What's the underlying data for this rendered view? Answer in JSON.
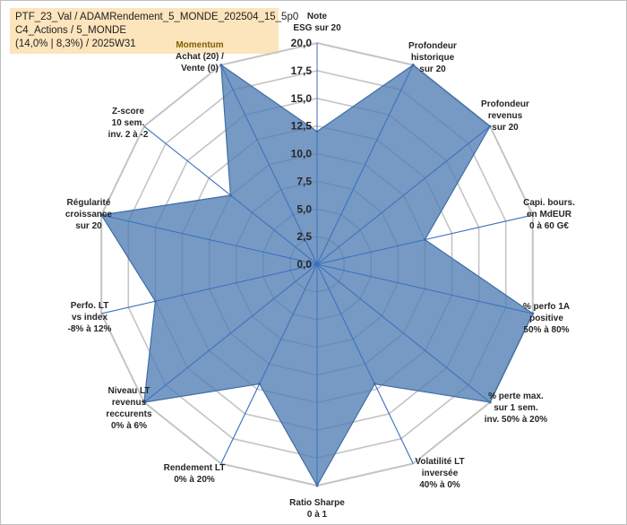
{
  "title_lines": [
    "PTF_23_Val / ADAMRendement_5_MONDE_202504_15_5p0",
    "C4_Actions / 5_MONDE",
    "(14,0% | 8,3%) / 2025W31"
  ],
  "chart_data": {
    "type": "radar",
    "range": [
      0,
      20
    ],
    "ticks": [
      "0,0",
      "2,5",
      "5,0",
      "7,5",
      "10,0",
      "12,5",
      "15,0",
      "17,5",
      "20,0"
    ],
    "grid": true,
    "axes": [
      {
        "lines": [
          "Note",
          "ESG sur 20"
        ],
        "value": 12
      },
      {
        "lines": [
          "Profondeur",
          "historique",
          "sur 20"
        ],
        "value": 20
      },
      {
        "lines": [
          "Profondeur",
          "revenus",
          "sur 20"
        ],
        "value": 20
      },
      {
        "lines": [
          "Capi. bours.",
          "en MdEUR",
          "0 à 60 G€"
        ],
        "value": 10
      },
      {
        "lines": [
          "% perfo 1A",
          "positive",
          "50% à 80%"
        ],
        "value": 20
      },
      {
        "lines": [
          "% perte max.",
          "sur 1 sem.",
          "inv. 50% à 20%"
        ],
        "value": 20
      },
      {
        "lines": [
          "Volatilité LT",
          "inversée",
          "40% à 0%"
        ],
        "value": 12
      },
      {
        "lines": [
          "Ratio Sharpe",
          "0 à 1"
        ],
        "value": 20
      },
      {
        "lines": [
          "Rendement LT",
          "0% à 20%"
        ],
        "value": 12
      },
      {
        "lines": [
          "Niveau LT",
          "revenus",
          "reccurents",
          "0% à 6%"
        ],
        "value": 20
      },
      {
        "lines": [
          "Perfo. LT",
          "vs index",
          "-8% à 12%"
        ],
        "value": 15
      },
      {
        "lines": [
          "Régularité",
          "croissance",
          "sur 20"
        ],
        "value": 20
      },
      {
        "lines": [
          "Z-score",
          "10 sem.",
          "inv. 2 à -2"
        ],
        "value": 10
      },
      {
        "lines": [
          "Momentum",
          "Achat (20) /",
          "Vente (0)"
        ],
        "value": 20,
        "highlight_first_line": true
      }
    ],
    "colors": {
      "fill": "#4f7db3",
      "stroke": "#3f6da3",
      "axis": "#3a6fc0",
      "grid": "#c4c4c4"
    }
  }
}
